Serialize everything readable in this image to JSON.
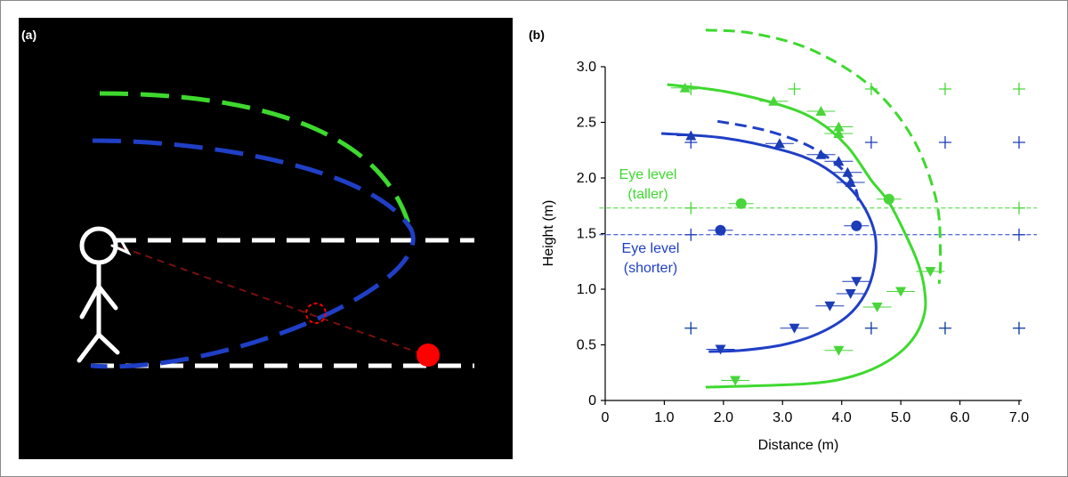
{
  "colors": {
    "taller": "#3ed92e",
    "shorter": "#1f3fc6",
    "marker_taller": "#49d63a",
    "marker_shorter": "#1c3cb8",
    "target": "#ff0000",
    "sightline": "#7a1010",
    "panel_a_bg": "#000000"
  },
  "panel_a": {
    "label": "(a)",
    "elements": [
      "stick-figure observer",
      "eye-level line",
      "floor line",
      "taller trajectory",
      "shorter trajectory",
      "ball",
      "apparent-position marker",
      "line of sight"
    ]
  },
  "panel_b": {
    "label": "(b)",
    "eye_taller_label": [
      "Eye level",
      "(taller)"
    ],
    "eye_shorter_label": [
      "Eye level",
      "(shorter)"
    ]
  },
  "chart_data": {
    "type": "scatter",
    "xlabel": "Distance (m)",
    "ylabel": "Height (m)",
    "xlim": [
      0,
      7.0
    ],
    "ylim": [
      0,
      3.0
    ],
    "x_ticks": [
      "0",
      "1.0",
      "2.0",
      "3.0",
      "4.0",
      "5.0",
      "6.0",
      "7.0"
    ],
    "y_ticks": [
      "0",
      "0.5",
      "1.0",
      "1.5",
      "2.0",
      "2.5",
      "3.0"
    ],
    "eye_levels": {
      "taller": 1.73,
      "shorter": 1.49
    },
    "series": [
      {
        "name": "taller",
        "fit_curve": [
          [
            1.05,
            2.84
          ],
          [
            2.0,
            2.78
          ],
          [
            3.0,
            2.65
          ],
          [
            3.6,
            2.51
          ],
          [
            4.1,
            2.28
          ],
          [
            4.5,
            1.98
          ],
          [
            4.8,
            1.78
          ],
          [
            5.1,
            1.47
          ],
          [
            5.3,
            1.22
          ],
          [
            5.4,
            1.0
          ],
          [
            5.4,
            0.78
          ],
          [
            5.2,
            0.55
          ],
          [
            4.8,
            0.36
          ],
          [
            4.2,
            0.22
          ],
          [
            3.4,
            0.15
          ],
          [
            1.7,
            0.12
          ]
        ],
        "dashed_curve": [
          [
            1.7,
            3.33
          ],
          [
            2.5,
            3.3
          ],
          [
            3.5,
            3.15
          ],
          [
            4.5,
            2.82
          ],
          [
            5.2,
            2.36
          ],
          [
            5.6,
            1.8
          ],
          [
            5.67,
            1.3
          ],
          [
            5.65,
            1.05
          ]
        ],
        "up_triangles": [
          [
            1.35,
            2.81
          ],
          [
            2.85,
            2.69
          ],
          [
            3.65,
            2.6
          ],
          [
            3.95,
            2.46
          ],
          [
            3.95,
            2.4
          ]
        ],
        "circles": [
          [
            2.3,
            1.77
          ],
          [
            4.8,
            1.81
          ]
        ],
        "down_triangles": [
          [
            5.5,
            1.16
          ],
          [
            5.0,
            0.98
          ],
          [
            4.6,
            0.84
          ],
          [
            3.95,
            0.45
          ],
          [
            2.2,
            0.18
          ]
        ],
        "plus": [
          [
            1.45,
            2.8
          ],
          [
            3.2,
            2.8
          ],
          [
            4.5,
            2.8
          ],
          [
            5.75,
            2.8
          ],
          [
            7.0,
            2.8
          ],
          [
            1.45,
            1.73
          ],
          [
            7.0,
            1.73
          ],
          [
            1.45,
            0.65
          ],
          [
            4.5,
            0.65
          ],
          [
            5.75,
            0.65
          ],
          [
            7.0,
            0.65
          ]
        ]
      },
      {
        "name": "shorter",
        "fit_curve": [
          [
            0.95,
            2.4
          ],
          [
            2.0,
            2.36
          ],
          [
            3.0,
            2.25
          ],
          [
            3.6,
            2.13
          ],
          [
            4.1,
            1.93
          ],
          [
            4.4,
            1.72
          ],
          [
            4.57,
            1.47
          ],
          [
            4.55,
            1.2
          ],
          [
            4.4,
            0.96
          ],
          [
            4.1,
            0.76
          ],
          [
            3.6,
            0.6
          ],
          [
            3.0,
            0.5
          ],
          [
            2.3,
            0.45
          ],
          [
            1.75,
            0.44
          ]
        ],
        "dashed_curve": [
          [
            1.9,
            2.51
          ],
          [
            2.7,
            2.43
          ],
          [
            3.4,
            2.3
          ],
          [
            3.9,
            2.13
          ],
          [
            4.2,
            1.95
          ],
          [
            4.3,
            1.75
          ]
        ],
        "up_triangles": [
          [
            1.45,
            2.38
          ],
          [
            2.95,
            2.31
          ],
          [
            3.65,
            2.21
          ],
          [
            3.95,
            2.15
          ],
          [
            4.1,
            2.05
          ],
          [
            4.15,
            1.96
          ]
        ],
        "circles": [
          [
            1.95,
            1.53
          ],
          [
            4.25,
            1.57
          ]
        ],
        "down_triangles": [
          [
            4.25,
            1.07
          ],
          [
            4.15,
            0.96
          ],
          [
            3.8,
            0.85
          ],
          [
            3.2,
            0.65
          ],
          [
            1.95,
            0.46
          ]
        ],
        "plus": [
          [
            1.45,
            2.32
          ],
          [
            4.5,
            2.32
          ],
          [
            5.75,
            2.32
          ],
          [
            7.0,
            2.32
          ],
          [
            1.45,
            1.49
          ],
          [
            7.0,
            1.49
          ],
          [
            1.45,
            0.65
          ],
          [
            4.5,
            0.65
          ],
          [
            5.75,
            0.65
          ],
          [
            7.0,
            0.65
          ]
        ]
      }
    ]
  }
}
